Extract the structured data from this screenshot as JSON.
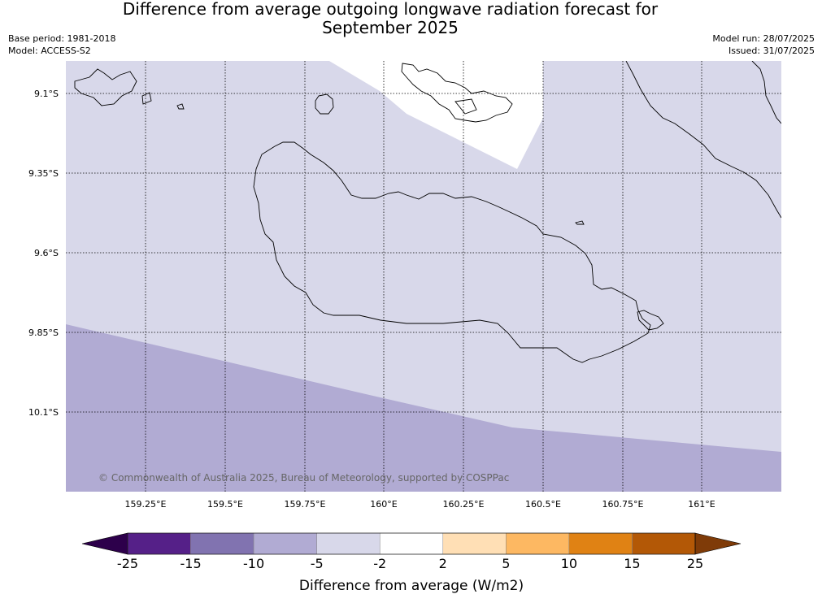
{
  "header": {
    "title_line1": "Difference from average outgoing longwave radiation forecast for",
    "title_line2": "September 2025",
    "base_period": "Base period: 1981-2018",
    "model": "Model: ACCESS-S2",
    "model_run": "Model run: 28/07/2025",
    "issued": "Issued: 31/07/2025"
  },
  "map": {
    "lat_labels": [
      "9.1°S",
      "9.35°S",
      "9.6°S",
      "9.85°S",
      "10.1°S"
    ],
    "lon_labels": [
      "159.25°E",
      "159.5°E",
      "159.75°E",
      "160°E",
      "160.25°E",
      "160.5°E",
      "160.75°E",
      "161°E"
    ],
    "copyright": "© Commonwealth of Australia 2025, Bureau of Meteorology, supported by COSPPac",
    "fill_colors": {
      "light": "#d8d8ea",
      "medium": "#b1abd3",
      "white": "#ffffff"
    }
  },
  "colorbar": {
    "title": "Difference from average (W/m2)",
    "ticks": [
      "-25",
      "-15",
      "-10",
      "-5",
      "-2",
      "2",
      "5",
      "10",
      "15",
      "25"
    ],
    "colors": [
      "#552088",
      "#8173b0",
      "#b1abd3",
      "#d8d8ea",
      "#ffffff",
      "#ffdfb5",
      "#fdb862",
      "#e08214",
      "#b35806"
    ],
    "extend_low_color": "#2d004b",
    "extend_high_color": "#7f3b08"
  }
}
